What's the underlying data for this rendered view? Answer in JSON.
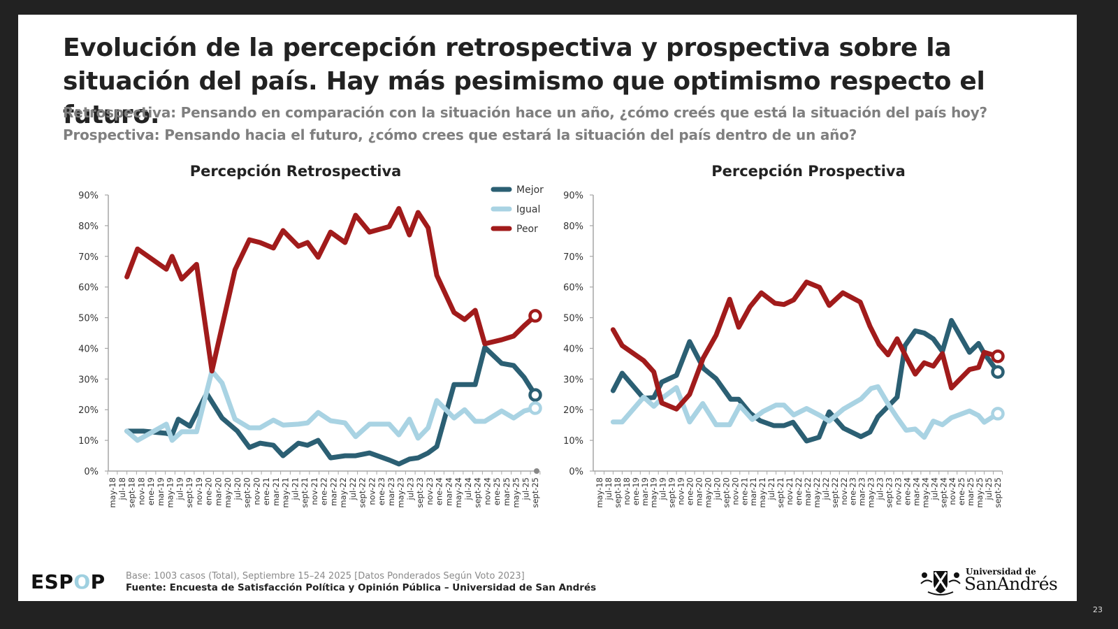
{
  "slide": {
    "title": "Evolución de la percepción retrospectiva y prospectiva sobre la situación del país. Hay más pesimismo que optimismo respecto el futuro.",
    "question_retro": "Retrospectiva: Pensando en comparación con la situación hace un año, ¿cómo creés que está la situación del país hoy?",
    "question_pros": "Prospectiva: Pensando hacia el futuro, ¿cómo crees que estará la situación del país dentro de un año?",
    "page_number": "23"
  },
  "footer": {
    "logo_prefix": "ESP",
    "logo_o": "O",
    "logo_suffix": "P",
    "base": "Base: 1003 casos (Total), Septiembre 15–24 2025 [Datos Ponderados Según Voto 2023]",
    "source": "Fuente: Encuesta de Satisfacción Política y Opinión Pública – Universidad de San Andrés",
    "university_small": "Universidad de",
    "university_big": "SanAndrés"
  },
  "colors": {
    "mejor": "#2b5f73",
    "igual": "#a9d3e3",
    "peor": "#a11b1b",
    "axis": "#a6a6a6"
  },
  "chart_data": [
    {
      "type": "line",
      "title": "Percepción Retrospectiva",
      "xlabel": "",
      "ylabel": "",
      "ylim": [
        0,
        90
      ],
      "y_ticks": [
        "0%",
        "10%",
        "20%",
        "30%",
        "40%",
        "50%",
        "60%",
        "70%",
        "80%",
        "90%"
      ],
      "categories": [
        "may-18",
        "jul-18",
        "sept-18",
        "nov-18",
        "ene-19",
        "mar-19",
        "may-19",
        "jul-19",
        "sept-19",
        "nov-19",
        "ene-20",
        "mar-20",
        "may-20",
        "jul-20",
        "sept-20",
        "nov-20",
        "ene-21",
        "mar-21",
        "may-21",
        "jul-21",
        "sept-21",
        "nov-21",
        "ene-22",
        "mar-22",
        "may-22",
        "jul-22",
        "sept-22",
        "nov-22",
        "ene-23",
        "mar-23",
        "may-23",
        "jul-23",
        "sept-23",
        "nov-23",
        "ene-24",
        "mar-24",
        "may-24",
        "jul-24",
        "sept-24",
        "nov-24",
        "ene-25",
        "mar-25",
        "may-25",
        "jul-25",
        "sept-25"
      ],
      "x_unit": "months since may-18 (category step = 2 months)",
      "legend": {
        "position": "top-right",
        "entries": [
          "Mejor",
          "Igual",
          "Peor"
        ]
      },
      "grid": false,
      "series": [
        {
          "name": "Mejor",
          "color_key": "mejor",
          "points": [
            [
              3,
              13
            ],
            [
              6.4,
              13
            ],
            [
              11.2,
              12.3
            ],
            [
              12.4,
              11.8
            ],
            [
              13.7,
              16.9
            ],
            [
              16.1,
              14.6
            ],
            [
              19.6,
              25.3
            ],
            [
              22.8,
              17.3
            ],
            [
              26,
              13
            ],
            [
              28.5,
              7.7
            ],
            [
              30.7,
              9.1
            ],
            [
              33.5,
              8.4
            ],
            [
              35.5,
              5
            ],
            [
              38.7,
              9.1
            ],
            [
              40.6,
              8.4
            ],
            [
              42.8,
              10
            ],
            [
              45.4,
              4.3
            ],
            [
              48.4,
              5
            ],
            [
              50.6,
              5
            ],
            [
              53.5,
              5.9
            ],
            [
              57.6,
              3.6
            ],
            [
              59.6,
              2.3
            ],
            [
              61.8,
              3.9
            ],
            [
              63.6,
              4.3
            ],
            [
              65.7,
              5.9
            ],
            [
              67.5,
              8
            ],
            [
              71.1,
              28.2
            ],
            [
              75.5,
              28.2
            ],
            [
              77.5,
              40.3
            ],
            [
              81,
              35.1
            ],
            [
              83.5,
              34.4
            ],
            [
              85.7,
              30.5
            ],
            [
              88,
              24.8
            ]
          ]
        },
        {
          "name": "Igual",
          "color_key": "igual",
          "points": [
            [
              3,
              13
            ],
            [
              5.2,
              10
            ],
            [
              11.2,
              15.3
            ],
            [
              12.4,
              10
            ],
            [
              14.4,
              12.8
            ],
            [
              17.5,
              12.8
            ],
            [
              20.7,
              32.6
            ],
            [
              22.8,
              28.7
            ],
            [
              25.5,
              16.9
            ],
            [
              28.5,
              14.1
            ],
            [
              30.7,
              14.1
            ],
            [
              33.5,
              16.6
            ],
            [
              35.5,
              15
            ],
            [
              38.7,
              15.3
            ],
            [
              40.6,
              15.7
            ],
            [
              42.8,
              19.1
            ],
            [
              45.4,
              16.4
            ],
            [
              48.4,
              15.7
            ],
            [
              50.6,
              11.2
            ],
            [
              53.5,
              15.3
            ],
            [
              57.6,
              15.3
            ],
            [
              59.6,
              11.8
            ],
            [
              61.8,
              16.9
            ],
            [
              63.6,
              10.7
            ],
            [
              65.7,
              14.1
            ],
            [
              67.5,
              23
            ],
            [
              71.1,
              17.3
            ],
            [
              73.3,
              20
            ],
            [
              75.5,
              16.2
            ],
            [
              77.5,
              16.2
            ],
            [
              81,
              19.6
            ],
            [
              83.5,
              17.3
            ],
            [
              85.7,
              19.6
            ],
            [
              88,
              20.5
            ]
          ]
        },
        {
          "name": "Peor",
          "color_key": "peor",
          "points": [
            [
              3,
              63.3
            ],
            [
              5.2,
              72.4
            ],
            [
              11.2,
              65.8
            ],
            [
              12.4,
              70
            ],
            [
              14.4,
              62.6
            ],
            [
              17.5,
              67.4
            ],
            [
              20.7,
              32.6
            ],
            [
              25.5,
              65.6
            ],
            [
              28.5,
              75.4
            ],
            [
              30.7,
              74.5
            ],
            [
              33.5,
              72.7
            ],
            [
              35.5,
              78.4
            ],
            [
              38.7,
              73.3
            ],
            [
              40.6,
              74.5
            ],
            [
              42.8,
              69.7
            ],
            [
              45.4,
              77.9
            ],
            [
              48.4,
              74.5
            ],
            [
              50.6,
              83.4
            ],
            [
              53.5,
              77.9
            ],
            [
              57.6,
              79.7
            ],
            [
              59.6,
              85.6
            ],
            [
              61.8,
              77
            ],
            [
              63.6,
              84.3
            ],
            [
              65.7,
              79.3
            ],
            [
              67.5,
              63.8
            ],
            [
              71.1,
              51.7
            ],
            [
              73.3,
              49.4
            ],
            [
              75.5,
              52.4
            ],
            [
              77.5,
              41.5
            ],
            [
              81,
              42.8
            ],
            [
              83.5,
              44
            ],
            [
              85.7,
              47.4
            ],
            [
              88,
              50.6
            ]
          ]
        }
      ]
    },
    {
      "type": "line",
      "title": "Percepción Prospectiva",
      "xlabel": "",
      "ylabel": "",
      "ylim": [
        0,
        90
      ],
      "y_ticks": [
        "0%",
        "10%",
        "20%",
        "30%",
        "40%",
        "50%",
        "60%",
        "70%",
        "80%",
        "90%"
      ],
      "categories": [
        "may-18",
        "jul-18",
        "sept-18",
        "nov-18",
        "ene-19",
        "mar-19",
        "may-19",
        "jul-19",
        "sept-19",
        "nov-19",
        "ene-20",
        "mar-20",
        "may-20",
        "jul-20",
        "sept-20",
        "nov-20",
        "ene-21",
        "mar-21",
        "may-21",
        "jul-21",
        "sept-21",
        "nov-21",
        "ene-22",
        "mar-22",
        "may-22",
        "jul-22",
        "sept-22",
        "nov-22",
        "ene-23",
        "mar-23",
        "may-23",
        "jul-23",
        "sept-23",
        "nov-23",
        "ene-24",
        "mar-24",
        "may-24",
        "jul-24",
        "sept-24",
        "nov-24",
        "ene-25",
        "mar-25",
        "may-25",
        "jul-25",
        "sept-25"
      ],
      "x_unit": "months since may-18 (category step = 2 months)",
      "legend": {
        "position": "shared (left chart top-right)",
        "entries": [
          "Mejor",
          "Igual",
          "Peor"
        ]
      },
      "grid": false,
      "series": [
        {
          "name": "Mejor",
          "color_key": "mejor",
          "points": [
            [
              3,
              26.2
            ],
            [
              5,
              31.9
            ],
            [
              9.75,
              23.7
            ],
            [
              12,
              24
            ],
            [
              13.75,
              29
            ],
            [
              17,
              31.2
            ],
            [
              19.9,
              42.2
            ],
            [
              23,
              33.4
            ],
            [
              25.75,
              30.1
            ],
            [
              29,
              23.4
            ],
            [
              30.75,
              23.4
            ],
            [
              33.25,
              18.9
            ],
            [
              35.5,
              16.4
            ],
            [
              38.5,
              14.8
            ],
            [
              40.75,
              14.8
            ],
            [
              42.75,
              15.9
            ],
            [
              45.75,
              9.8
            ],
            [
              48.5,
              11
            ],
            [
              50.75,
              19.3
            ],
            [
              53.9,
              14
            ],
            [
              57.75,
              11.2
            ],
            [
              59.75,
              12.7
            ],
            [
              61.5,
              17.7
            ],
            [
              63.75,
              21.1
            ],
            [
              65.75,
              24.1
            ],
            [
              67.5,
              40.9
            ],
            [
              69.75,
              45.7
            ],
            [
              71.75,
              45
            ],
            [
              73.75,
              43.1
            ],
            [
              75.75,
              39
            ],
            [
              77.75,
              49.1
            ],
            [
              81.75,
              38.7
            ],
            [
              83.75,
              41.6
            ],
            [
              85,
              38.3
            ],
            [
              88,
              32.3
            ]
          ]
        },
        {
          "name": "Igual",
          "color_key": "igual",
          "points": [
            [
              3,
              16
            ],
            [
              5,
              16
            ],
            [
              9.75,
              24.1
            ],
            [
              12,
              21.1
            ],
            [
              13.75,
              23.7
            ],
            [
              17,
              27.2
            ],
            [
              19.9,
              16
            ],
            [
              22.8,
              22
            ],
            [
              25.75,
              15.1
            ],
            [
              28.75,
              15.1
            ],
            [
              31,
              21.3
            ],
            [
              33.75,
              16.8
            ],
            [
              36.1,
              19.4
            ],
            [
              39,
              21.5
            ],
            [
              40.75,
              21.5
            ],
            [
              42.9,
              18.3
            ],
            [
              45.75,
              20.4
            ],
            [
              48.75,
              18.1
            ],
            [
              50.75,
              16.3
            ],
            [
              53.9,
              20.2
            ],
            [
              57.75,
              23.5
            ],
            [
              60,
              26.9
            ],
            [
              61.5,
              27.5
            ],
            [
              63.75,
              21.9
            ],
            [
              65.75,
              17.4
            ],
            [
              67.75,
              13.3
            ],
            [
              69.75,
              13.7
            ],
            [
              71.75,
              11
            ],
            [
              73.75,
              16.3
            ],
            [
              75.75,
              15.1
            ],
            [
              77.75,
              17.4
            ],
            [
              81.75,
              19.6
            ],
            [
              83.75,
              18.1
            ],
            [
              85,
              15.9
            ],
            [
              88,
              18.7
            ]
          ]
        },
        {
          "name": "Peor",
          "color_key": "peor",
          "points": [
            [
              3,
              46.1
            ],
            [
              5,
              40.9
            ],
            [
              9.75,
              36
            ],
            [
              12,
              32.3
            ],
            [
              13.75,
              22.2
            ],
            [
              17,
              20.2
            ],
            [
              19.9,
              25
            ],
            [
              22.9,
              36.8
            ],
            [
              25.75,
              44.3
            ],
            [
              28.75,
              56
            ],
            [
              30.75,
              46.9
            ],
            [
              33.25,
              53.6
            ],
            [
              35.75,
              58.1
            ],
            [
              38.75,
              54.7
            ],
            [
              40.75,
              54.3
            ],
            [
              42.9,
              55.8
            ],
            [
              45.75,
              61.6
            ],
            [
              48.6,
              59.9
            ],
            [
              50.75,
              54
            ],
            [
              53.75,
              58.1
            ],
            [
              57.6,
              55.1
            ],
            [
              59.75,
              47.2
            ],
            [
              61.75,
              41.3
            ],
            [
              63.75,
              37.9
            ],
            [
              65.75,
              43.1
            ],
            [
              67.75,
              37.2
            ],
            [
              69.75,
              31.6
            ],
            [
              71.75,
              35.3
            ],
            [
              73.75,
              34.2
            ],
            [
              75.75,
              38.3
            ],
            [
              77.75,
              27.1
            ],
            [
              81.75,
              33.1
            ],
            [
              83.75,
              33.8
            ],
            [
              85,
              38.7
            ],
            [
              88,
              37.4
            ]
          ]
        }
      ]
    }
  ]
}
